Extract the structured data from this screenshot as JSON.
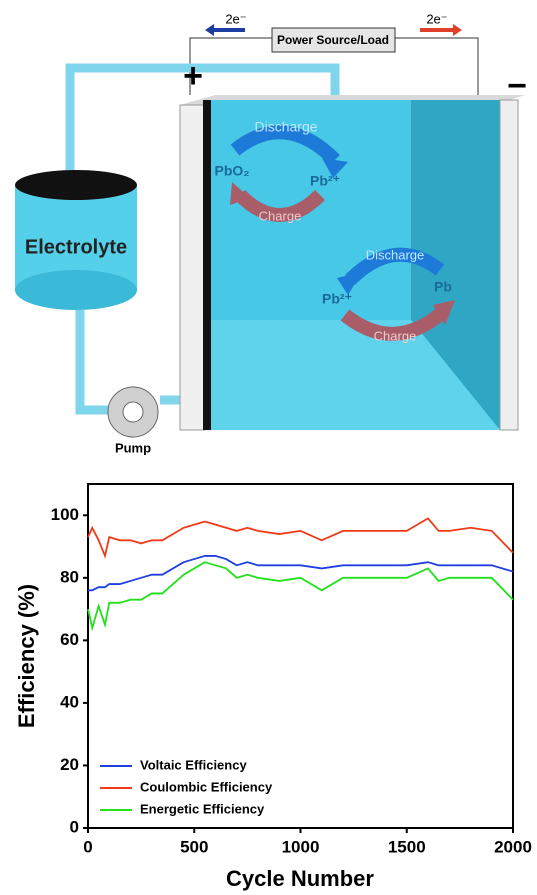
{
  "diagram": {
    "electron_left": "2e⁻",
    "electron_right": "2e⁻",
    "power": "Power Source/Load",
    "plus": "+",
    "minus": "−",
    "discharge_top": "Discharge",
    "charge_top": "Charge",
    "pbo2": "PbO₂",
    "pb2_top": "Pb²⁺",
    "discharge_bottom": "Discharge",
    "charge_bottom": "Charge",
    "pb2_bottom": "Pb²⁺",
    "pb": "Pb",
    "electrolyte": "Electrolyte",
    "pump": "Pump"
  },
  "chart_data": {
    "type": "line",
    "x_label": "Cycle Number",
    "y_label": "Efficiency (%)",
    "x": [
      0,
      20,
      50,
      80,
      100,
      150,
      200,
      250,
      300,
      350,
      400,
      450,
      500,
      550,
      600,
      650,
      700,
      750,
      800,
      900,
      1000,
      1100,
      1200,
      1300,
      1400,
      1500,
      1600,
      1650,
      1700,
      1800,
      1900,
      2000
    ],
    "series": [
      {
        "name": "Voltaic Efficiency",
        "color": "#1f3fe0",
        "values": [
          76,
          76,
          77,
          77,
          78,
          78,
          79,
          80,
          81,
          81,
          83,
          85,
          86,
          87,
          87,
          86,
          84,
          85,
          84,
          84,
          84,
          83,
          84,
          84,
          84,
          84,
          85,
          84,
          84,
          84,
          84,
          82
        ]
      },
      {
        "name": "Coulombic Efficiency",
        "color": "#f03a17",
        "values": [
          93,
          96,
          92,
          87,
          93,
          92,
          92,
          91,
          92,
          92,
          94,
          96,
          97,
          98,
          97,
          96,
          95,
          96,
          95,
          94,
          95,
          92,
          95,
          95,
          95,
          95,
          99,
          95,
          95,
          96,
          95,
          88
        ]
      },
      {
        "name": "Energetic Efficiency",
        "color": "#22e01b",
        "values": [
          70,
          64,
          71,
          65,
          72,
          72,
          73,
          73,
          75,
          75,
          78,
          81,
          83,
          85,
          84,
          83,
          80,
          81,
          80,
          79,
          80,
          76,
          80,
          80,
          80,
          80,
          83,
          79,
          80,
          80,
          80,
          73
        ]
      }
    ],
    "xlim": [
      0,
      2000
    ],
    "xticks": [
      0,
      500,
      1000,
      1500,
      2000
    ],
    "ylim": [
      0,
      110
    ],
    "yticks": [
      0,
      20,
      40,
      60,
      80,
      100
    ],
    "grid": false,
    "legend": "lower-left"
  }
}
